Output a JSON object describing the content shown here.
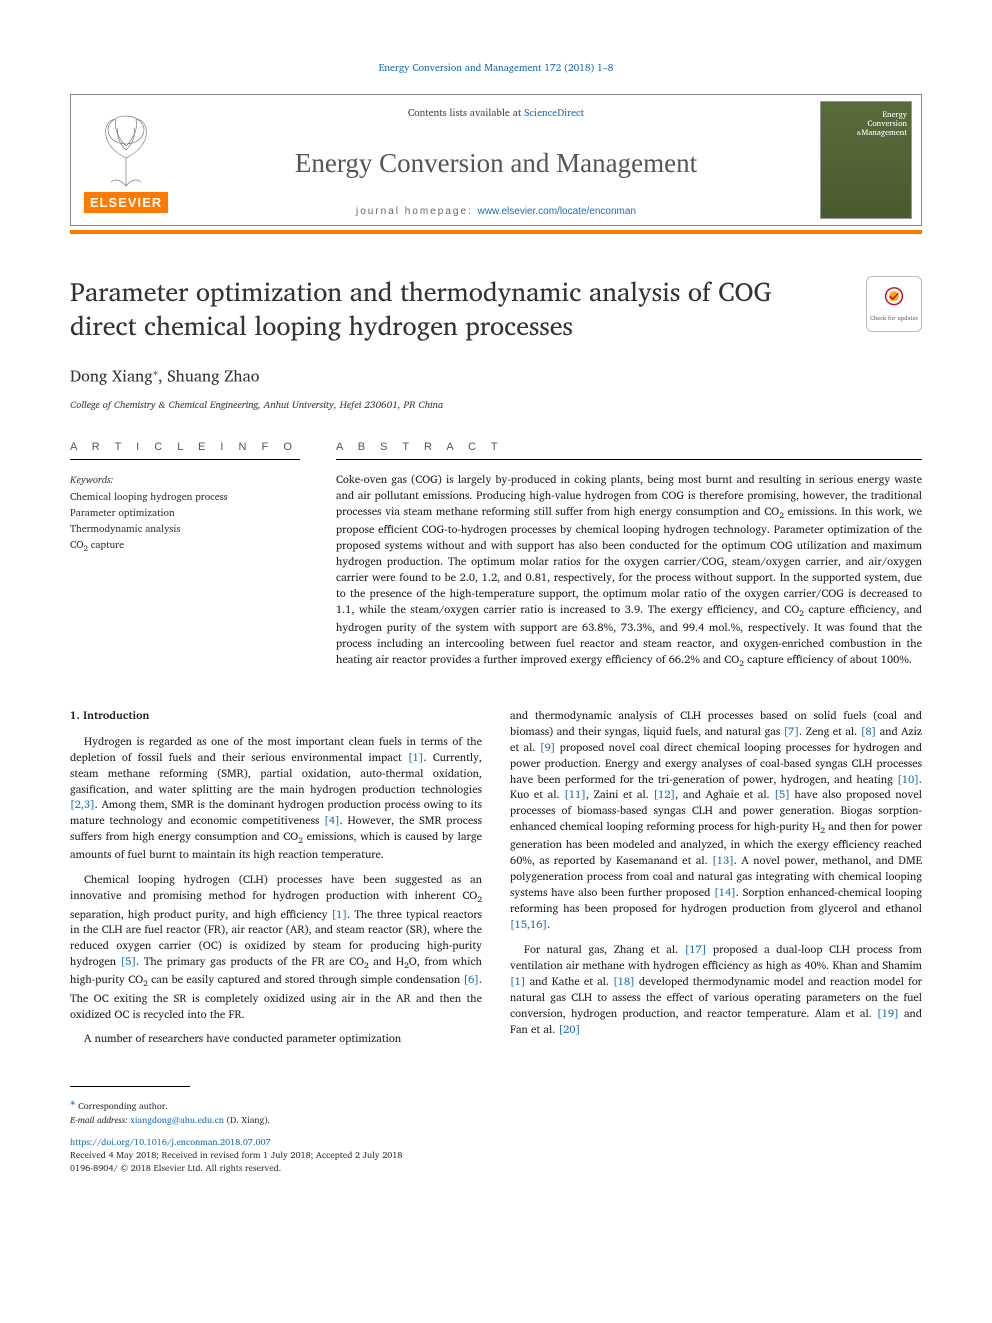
{
  "top_citation": "Energy Conversion and Management 172 (2018) 1–8",
  "header": {
    "publisher_name": "ELSEVIER",
    "contents_prefix": "Contents lists available at ",
    "contents_link": "ScienceDirect",
    "journal_title": "Energy Conversion and Management",
    "homepage_label": "journal homepage: ",
    "homepage_url": "www.elsevier.com/locate/enconman",
    "cover_line1": "Energy",
    "cover_line2": "Conversion",
    "cover_line3": "Management"
  },
  "paper": {
    "title": "Parameter optimization and thermodynamic analysis of COG direct chemical looping hydrogen processes",
    "check_updates_label": "Check for updates",
    "authors_html": "Dong Xiang<sup class=\"corr-mark\">⁎</sup>, Shuang Zhao",
    "affiliation": "College of Chemistry & Chemical Engineering, Anhui University, Hefei 230601, PR China"
  },
  "article_info": {
    "heading": "A R T I C L E  I N F O",
    "keywords_label": "Keywords:",
    "keywords": [
      "Chemical looping hydrogen process",
      "Parameter optimization",
      "Thermodynamic analysis",
      "CO<sub>2</sub> capture"
    ]
  },
  "abstract": {
    "heading": "A B S T R A C T",
    "text": "Coke-oven gas (COG) is largely by-produced in coking plants, being most burnt and resulting in serious energy waste and air pollutant emissions. Producing high-value hydrogen from COG is therefore promising, however, the traditional processes via steam methane reforming still suffer from high energy consumption and CO<sub>2</sub> emissions. In this work, we propose efficient COG-to-hydrogen processes by chemical looping hydrogen technology. Parameter optimization of the proposed systems without and with support has also been conducted for the optimum COG utilization and maximum hydrogen production. The optimum molar ratios for the oxygen carrier/COG, steam/oxygen carrier, and air/oxygen carrier were found to be 2.0, 1.2, and 0.81, respectively, for the process without support. In the supported system, due to the presence of the high-temperature support, the optimum molar ratio of the oxygen carrier/COG is decreased to 1.1, while the steam/oxygen carrier ratio is increased to 3.9. The exergy efficiency, and CO<sub>2</sub> capture efficiency, and hydrogen purity of the system with support are 63.8%, 73.3%, and 99.4 mol.%, respectively. It was found that the process including an intercooling between fuel reactor and steam reactor, and oxygen-enriched combustion in the heating air reactor provides a further improved exergy efficiency of 66.2% and CO<sub>2</sub> capture efficiency of about 100%."
  },
  "body": {
    "section_heading": "1. Introduction",
    "left_paragraphs": [
      "Hydrogen is regarded as one of the most important clean fuels in terms of the depletion of fossil fuels and their serious environmental impact <a class=\"ref-link\" data-name=\"ref-1\" data-interactable=\"true\">[1]</a>. Currently, steam methane reforming (SMR), partial oxidation, auto-thermal oxidation, gasification, and water splitting are the main hydrogen production technologies <a class=\"ref-link\" data-name=\"ref-2-3\" data-interactable=\"true\">[2,3]</a>. Among them, SMR is the dominant hydrogen production process owing to its mature technology and economic competitiveness <a class=\"ref-link\" data-name=\"ref-4\" data-interactable=\"true\">[4]</a>. However, the SMR process suffers from high energy consumption and CO<sub>2</sub> emissions, which is caused by large amounts of fuel burnt to maintain its high reaction temperature.",
      "Chemical looping hydrogen (CLH) processes have been suggested as an innovative and promising method for hydrogen production with inherent CO<sub>2</sub> separation, high product purity, and high efficiency <a class=\"ref-link\" data-name=\"ref-1b\" data-interactable=\"true\">[1]</a>. The three typical reactors in the CLH are fuel reactor (FR), air reactor (AR), and steam reactor (SR), where the reduced oxygen carrier (OC) is oxidized by steam for producing high-purity hydrogen <a class=\"ref-link\" data-name=\"ref-5\" data-interactable=\"true\">[5]</a>. The primary gas products of the FR are CO<sub>2</sub> and H<sub>2</sub>O, from which high-purity CO<sub>2</sub> can be easily captured and stored through simple condensation <a class=\"ref-link\" data-name=\"ref-6\" data-interactable=\"true\">[6]</a>. The OC exiting the SR is completely oxidized using air in the AR and then the oxidized OC is recycled into the FR.",
      "A number of researchers have conducted parameter optimization"
    ],
    "right_paragraphs": [
      "and thermodynamic analysis of CLH processes based on solid fuels (coal and biomass) and their syngas, liquid fuels, and natural gas <a class=\"ref-link\" data-name=\"ref-7\" data-interactable=\"true\">[7]</a>. Zeng et al. <a class=\"ref-link\" data-name=\"ref-8\" data-interactable=\"true\">[8]</a> and Aziz et al. <a class=\"ref-link\" data-name=\"ref-9\" data-interactable=\"true\">[9]</a> proposed novel coal direct chemical looping processes for hydrogen and power production. Energy and exergy analyses of coal-based syngas CLH processes have been performed for the tri-generation of power, hydrogen, and heating <a class=\"ref-link\" data-name=\"ref-10\" data-interactable=\"true\">[10]</a>. Kuo et al. <a class=\"ref-link\" data-name=\"ref-11\" data-interactable=\"true\">[11]</a>, Zaini et al. <a class=\"ref-link\" data-name=\"ref-12\" data-interactable=\"true\">[12]</a>, and Aghaie et al. <a class=\"ref-link\" data-name=\"ref-5b\" data-interactable=\"true\">[5]</a> have also proposed novel processes of biomass-based syngas CLH and power generation. Biogas sorption-enhanced chemical looping reforming process for high-purity H<sub>2</sub> and then for power generation has been modeled and analyzed, in which the exergy efficiency reached 60%, as reported by Kasemanand et al. <a class=\"ref-link\" data-name=\"ref-13\" data-interactable=\"true\">[13]</a>. A novel power, methanol, and DME polygeneration process from coal and natural gas integrating with chemical looping systems have also been further proposed <a class=\"ref-link\" data-name=\"ref-14\" data-interactable=\"true\">[14]</a>. Sorption enhanced-chemical looping reforming has been proposed for hydrogen production from glycerol and ethanol <a class=\"ref-link\" data-name=\"ref-15-16\" data-interactable=\"true\">[15,16]</a>.",
      "For natural gas, Zhang et al. <a class=\"ref-link\" data-name=\"ref-17\" data-interactable=\"true\">[17]</a> proposed a dual-loop CLH process from ventilation air methane with hydrogen efficiency as high as 40%. Khan and Shamim <a class=\"ref-link\" data-name=\"ref-1c\" data-interactable=\"true\">[1]</a> and Kathe et al. <a class=\"ref-link\" data-name=\"ref-18\" data-interactable=\"true\">[18]</a> developed thermodynamic model and reaction model for natural gas CLH to assess the effect of various operating parameters on the fuel conversion, hydrogen production, and reactor temperature. Alam et al. <a class=\"ref-link\" data-name=\"ref-19\" data-interactable=\"true\">[19]</a> and Fan et al. <a class=\"ref-link\" data-name=\"ref-20\" data-interactable=\"true\">[20]</a>"
    ]
  },
  "footer": {
    "corr_label": "⁎ Corresponding author.",
    "email_label": "E-mail address: ",
    "email": "xiangdong@ahu.edu.cn",
    "email_suffix": " (D. Xiang).",
    "doi": "https://doi.org/10.1016/j.enconman.2018.07.007",
    "received_line": "Received 4 May 2018; Received in revised form 1 July 2018; Accepted 2 July 2018",
    "copyright_line": "0196-8904/ © 2018 Elsevier Ltd. All rights reserved."
  },
  "colors": {
    "link": "#1a6db5",
    "brand_orange": "#ff7a00",
    "text": "#222222",
    "heading_gray": "#555555"
  }
}
